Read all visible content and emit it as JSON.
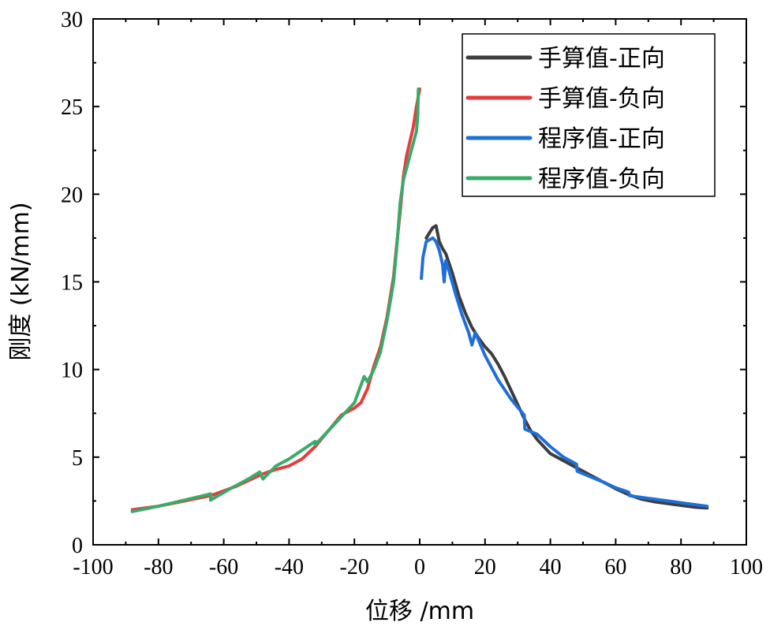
{
  "chart_data": {
    "type": "line",
    "title": "",
    "xlabel": "位移 /mm",
    "ylabel": "刚度 (kN/mm)",
    "xlim": [
      -100,
      100
    ],
    "ylim": [
      0,
      30
    ],
    "xticks": [
      -100,
      -80,
      -60,
      -40,
      -20,
      0,
      20,
      40,
      60,
      80,
      100
    ],
    "yticks": [
      0,
      5,
      10,
      15,
      20,
      25,
      30
    ],
    "xtick_labels": [
      "-100",
      "-80",
      "-60",
      "-40",
      "-20",
      "0",
      "20",
      "40",
      "60",
      "80",
      "100"
    ],
    "ytick_labels": [
      "0",
      "5",
      "10",
      "15",
      "20",
      "25",
      "30"
    ],
    "grid": false,
    "legend_position": "top-right",
    "series": [
      {
        "name": "手算值-正向",
        "color": "#3d3d3d",
        "points": [
          [
            2,
            17.5
          ],
          [
            3,
            17.8
          ],
          [
            4,
            18.1
          ],
          [
            5,
            18.2
          ],
          [
            6,
            17.3
          ],
          [
            7,
            16.9
          ],
          [
            8,
            16.6
          ],
          [
            10,
            15.5
          ],
          [
            12,
            14.2
          ],
          [
            14,
            13.2
          ],
          [
            16,
            12.4
          ],
          [
            18,
            11.8
          ],
          [
            20,
            11.3
          ],
          [
            22,
            10.9
          ],
          [
            24,
            10.3
          ],
          [
            26,
            9.6
          ],
          [
            28,
            8.8
          ],
          [
            30,
            8.0
          ],
          [
            32,
            7.2
          ],
          [
            34,
            6.5
          ],
          [
            36,
            6.0
          ],
          [
            38,
            5.6
          ],
          [
            40,
            5.2
          ],
          [
            44,
            4.8
          ],
          [
            48,
            4.4
          ],
          [
            52,
            4.0
          ],
          [
            56,
            3.6
          ],
          [
            60,
            3.2
          ],
          [
            64,
            2.85
          ],
          [
            68,
            2.6
          ],
          [
            72,
            2.45
          ],
          [
            76,
            2.35
          ],
          [
            80,
            2.25
          ],
          [
            84,
            2.15
          ],
          [
            88,
            2.1
          ]
        ]
      },
      {
        "name": "手算值-负向",
        "color": "#e53c3c",
        "points": [
          [
            -88,
            2.0
          ],
          [
            -80,
            2.2
          ],
          [
            -72,
            2.5
          ],
          [
            -64,
            2.8
          ],
          [
            -56,
            3.35
          ],
          [
            -48,
            4.05
          ],
          [
            -44,
            4.3
          ],
          [
            -40,
            4.5
          ],
          [
            -36,
            4.9
          ],
          [
            -32,
            5.6
          ],
          [
            -28,
            6.5
          ],
          [
            -24,
            7.4
          ],
          [
            -20,
            7.8
          ],
          [
            -18,
            8.1
          ],
          [
            -16,
            8.9
          ],
          [
            -14,
            10.2
          ],
          [
            -12,
            11.3
          ],
          [
            -10,
            13.0
          ],
          [
            -8,
            15.3
          ],
          [
            -7,
            17.2
          ],
          [
            -6,
            19.0
          ],
          [
            -5,
            21.0
          ],
          [
            -4,
            22.2
          ],
          [
            -2,
            23.8
          ],
          [
            -1,
            25.0
          ],
          [
            0,
            26.0
          ]
        ]
      },
      {
        "name": "程序值-正向",
        "color": "#1f6fd8",
        "points": [
          [
            0.5,
            15.2
          ],
          [
            1,
            16.4
          ],
          [
            2,
            17.3
          ],
          [
            3,
            17.4
          ],
          [
            4,
            17.5
          ],
          [
            5,
            17.3
          ],
          [
            6,
            16.8
          ],
          [
            7,
            16.0
          ],
          [
            7.5,
            15.0
          ],
          [
            8,
            16.2
          ],
          [
            9,
            15.6
          ],
          [
            11,
            14.3
          ],
          [
            13,
            13.1
          ],
          [
            15,
            12.1
          ],
          [
            16,
            11.4
          ],
          [
            17,
            12.1
          ],
          [
            20,
            10.8
          ],
          [
            24,
            9.4
          ],
          [
            28,
            8.3
          ],
          [
            32,
            7.4
          ],
          [
            32.2,
            6.6
          ],
          [
            36,
            6.3
          ],
          [
            40,
            5.6
          ],
          [
            44,
            5.0
          ],
          [
            48,
            4.6
          ],
          [
            48.2,
            4.2
          ],
          [
            52,
            3.9
          ],
          [
            56,
            3.6
          ],
          [
            60,
            3.25
          ],
          [
            64,
            3.0
          ],
          [
            64.2,
            2.8
          ],
          [
            70,
            2.65
          ],
          [
            76,
            2.5
          ],
          [
            82,
            2.35
          ],
          [
            88,
            2.2
          ]
        ]
      },
      {
        "name": "程序值-负向",
        "color": "#3aaa6a",
        "points": [
          [
            -88,
            1.9
          ],
          [
            -80,
            2.2
          ],
          [
            -72,
            2.55
          ],
          [
            -64,
            2.9
          ],
          [
            -64,
            2.55
          ],
          [
            -58,
            3.2
          ],
          [
            -52,
            3.8
          ],
          [
            -49,
            4.15
          ],
          [
            -48,
            3.75
          ],
          [
            -44,
            4.5
          ],
          [
            -40,
            4.9
          ],
          [
            -36,
            5.4
          ],
          [
            -32,
            5.9
          ],
          [
            -32,
            5.7
          ],
          [
            -28,
            6.5
          ],
          [
            -24,
            7.3
          ],
          [
            -20,
            8.1
          ],
          [
            -17,
            9.6
          ],
          [
            -16,
            9.3
          ],
          [
            -14,
            10.0
          ],
          [
            -12,
            11.0
          ],
          [
            -10,
            12.8
          ],
          [
            -8,
            15.0
          ],
          [
            -7,
            17.0
          ],
          [
            -6,
            19.5
          ],
          [
            -5,
            20.8
          ],
          [
            -3,
            22.2
          ],
          [
            -1,
            23.6
          ],
          [
            -0.6,
            24.5
          ],
          [
            -0.4,
            26.0
          ]
        ]
      }
    ]
  }
}
